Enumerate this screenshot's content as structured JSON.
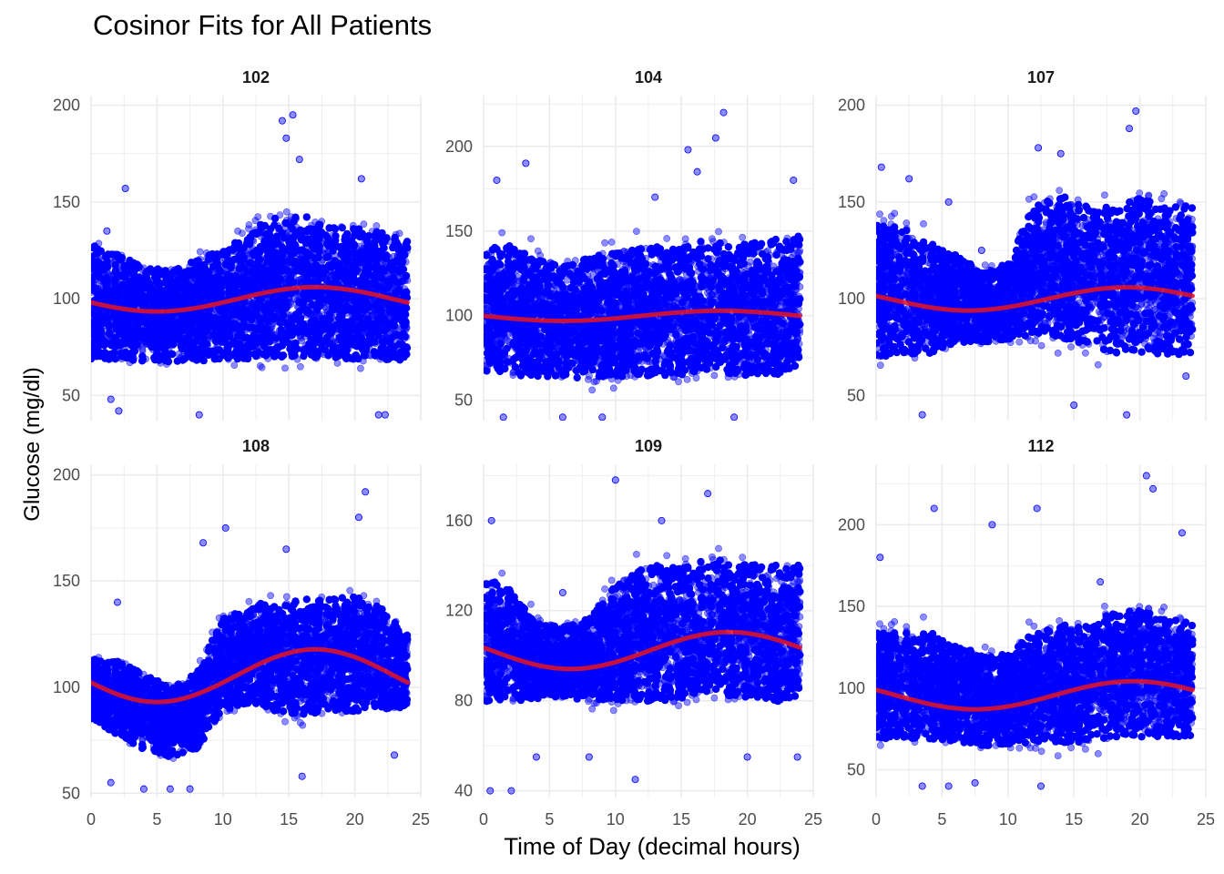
{
  "chart_data": {
    "type": "scatter",
    "title": "Cosinor Fits for All Patients",
    "xlabel": "Time of Day (decimal hours)",
    "ylabel": "Glucose (mg/dl)",
    "grid": true,
    "colors": {
      "points": "#0000ff",
      "fit": "#e8141e",
      "grid": "#ebebeb"
    },
    "xlim": [
      0,
      25
    ],
    "x_ticks": [
      0,
      5,
      10,
      15,
      20,
      25
    ],
    "panels": [
      {
        "id": "102",
        "ylim": [
          37,
          205
        ],
        "y_ticks": [
          50,
          100,
          150,
          200
        ],
        "fit": {
          "mesor": 99.7,
          "amplitude": 6.3,
          "acrophase": 17.0
        },
        "envelope": {
          "hours": [
            0,
            2,
            4,
            6,
            8,
            10,
            12,
            14,
            16,
            18,
            20,
            22,
            24
          ],
          "upper": [
            138,
            132,
            124,
            122,
            128,
            135,
            145,
            155,
            155,
            148,
            148,
            145,
            140
          ],
          "lower": [
            58,
            60,
            60,
            60,
            60,
            58,
            58,
            58,
            58,
            58,
            58,
            58,
            58
          ]
        },
        "outliers": [
          [
            14.5,
            192
          ],
          [
            15.3,
            195
          ],
          [
            14.8,
            183
          ],
          [
            2.6,
            157
          ],
          [
            1.2,
            135
          ],
          [
            20.5,
            162
          ],
          [
            1.5,
            48
          ],
          [
            2.1,
            42
          ],
          [
            8.2,
            40
          ],
          [
            21.8,
            40
          ],
          [
            22.3,
            40
          ],
          [
            15.8,
            172
          ]
        ]
      },
      {
        "id": "104",
        "ylim": [
          38,
          230
        ],
        "y_ticks": [
          50,
          100,
          150,
          200
        ],
        "fit": {
          "mesor": 99.9,
          "amplitude": 3.0,
          "acrophase": 18.0
        },
        "envelope": {
          "hours": [
            0,
            2,
            4,
            6,
            8,
            10,
            12,
            14,
            16,
            18,
            20,
            22,
            24
          ],
          "upper": [
            152,
            155,
            145,
            140,
            145,
            150,
            152,
            155,
            158,
            155,
            155,
            158,
            160
          ],
          "lower": [
            55,
            53,
            52,
            52,
            53,
            52,
            52,
            52,
            52,
            53,
            52,
            52,
            55
          ]
        },
        "outliers": [
          [
            18.2,
            220
          ],
          [
            17.6,
            205
          ],
          [
            15.5,
            198
          ],
          [
            16.2,
            185
          ],
          [
            3.2,
            190
          ],
          [
            1.0,
            180
          ],
          [
            23.5,
            180
          ],
          [
            1.5,
            40
          ],
          [
            6.0,
            40
          ],
          [
            9.0,
            40
          ],
          [
            19.0,
            40
          ],
          [
            13.0,
            170
          ]
        ]
      },
      {
        "id": "107",
        "ylim": [
          37,
          205
        ],
        "y_ticks": [
          50,
          100,
          150,
          200
        ],
        "fit": {
          "mesor": 99.9,
          "amplitude": 6.0,
          "acrophase": 19.0
        },
        "envelope": {
          "hours": [
            0,
            2,
            4,
            6,
            8,
            10,
            12,
            14,
            16,
            18,
            20,
            22,
            24
          ],
          "upper": [
            150,
            148,
            138,
            130,
            120,
            125,
            160,
            165,
            160,
            160,
            165,
            160,
            160
          ],
          "lower": [
            58,
            60,
            62,
            70,
            72,
            72,
            70,
            68,
            65,
            60,
            60,
            58,
            60
          ]
        },
        "outliers": [
          [
            19.7,
            197
          ],
          [
            19.2,
            188
          ],
          [
            0.4,
            168
          ],
          [
            2.5,
            162
          ],
          [
            14.0,
            175
          ],
          [
            5.5,
            150
          ],
          [
            3.5,
            40
          ],
          [
            15.0,
            45
          ],
          [
            19.0,
            40
          ],
          [
            23.5,
            60
          ],
          [
            12.3,
            178
          ],
          [
            8.0,
            125
          ]
        ]
      },
      {
        "id": "108",
        "ylim": [
          48,
          205
        ],
        "y_ticks": [
          50,
          100,
          150,
          200
        ],
        "fit": {
          "mesor": 105.4,
          "amplitude": 12.4,
          "acrophase": 17.0
        },
        "envelope": {
          "hours": [
            0,
            2,
            4,
            6,
            8,
            10,
            12,
            14,
            16,
            18,
            20,
            22,
            24
          ],
          "upper": [
            118,
            118,
            112,
            105,
            112,
            140,
            145,
            150,
            150,
            150,
            152,
            145,
            130
          ],
          "lower": [
            80,
            72,
            65,
            62,
            65,
            82,
            85,
            80,
            78,
            80,
            80,
            82,
            85
          ]
        },
        "outliers": [
          [
            20.8,
            192
          ],
          [
            20.3,
            180
          ],
          [
            10.2,
            175
          ],
          [
            14.8,
            165
          ],
          [
            2.0,
            140
          ],
          [
            8.5,
            168
          ],
          [
            1.5,
            55
          ],
          [
            4.0,
            52
          ],
          [
            6.0,
            52
          ],
          [
            7.5,
            52
          ],
          [
            16.0,
            58
          ],
          [
            23.0,
            68
          ]
        ]
      },
      {
        "id": "109",
        "ylim": [
          37,
          185
        ],
        "y_ticks": [
          40,
          80,
          120,
          160
        ],
        "fit": {
          "mesor": 102.3,
          "amplitude": 8.2,
          "acrophase": 18.6
        },
        "envelope": {
          "hours": [
            0,
            2,
            4,
            6,
            8,
            10,
            12,
            14,
            16,
            18,
            20,
            22,
            24
          ],
          "upper": [
            145,
            138,
            120,
            118,
            122,
            140,
            148,
            152,
            152,
            152,
            150,
            150,
            150
          ],
          "lower": [
            70,
            72,
            75,
            76,
            75,
            72,
            70,
            70,
            72,
            72,
            72,
            70,
            70
          ]
        },
        "outliers": [
          [
            10.0,
            178
          ],
          [
            0.6,
            160
          ],
          [
            13.5,
            160
          ],
          [
            17.0,
            172
          ],
          [
            0.5,
            40
          ],
          [
            2.1,
            40
          ],
          [
            11.5,
            45
          ],
          [
            4.0,
            55
          ],
          [
            8.0,
            55
          ],
          [
            20.0,
            55
          ],
          [
            6.0,
            128
          ],
          [
            23.8,
            55
          ]
        ]
      },
      {
        "id": "112",
        "ylim": [
          33,
          237
        ],
        "y_ticks": [
          50,
          100,
          150,
          200
        ],
        "fit": {
          "mesor": 95.6,
          "amplitude": 8.6,
          "acrophase": 19.5
        },
        "envelope": {
          "hours": [
            0,
            2,
            4,
            6,
            8,
            10,
            12,
            14,
            16,
            18,
            20,
            22,
            24
          ],
          "upper": [
            145,
            145,
            145,
            135,
            130,
            130,
            145,
            150,
            150,
            160,
            160,
            155,
            150
          ],
          "lower": [
            58,
            58,
            58,
            58,
            56,
            56,
            55,
            55,
            56,
            58,
            58,
            58,
            60
          ]
        },
        "outliers": [
          [
            20.5,
            230
          ],
          [
            21.0,
            222
          ],
          [
            4.4,
            210
          ],
          [
            12.2,
            210
          ],
          [
            8.8,
            200
          ],
          [
            17.0,
            165
          ],
          [
            0.3,
            180
          ],
          [
            23.2,
            195
          ],
          [
            5.5,
            40
          ],
          [
            12.5,
            40
          ],
          [
            7.5,
            42
          ],
          [
            3.5,
            40
          ]
        ]
      }
    ]
  }
}
